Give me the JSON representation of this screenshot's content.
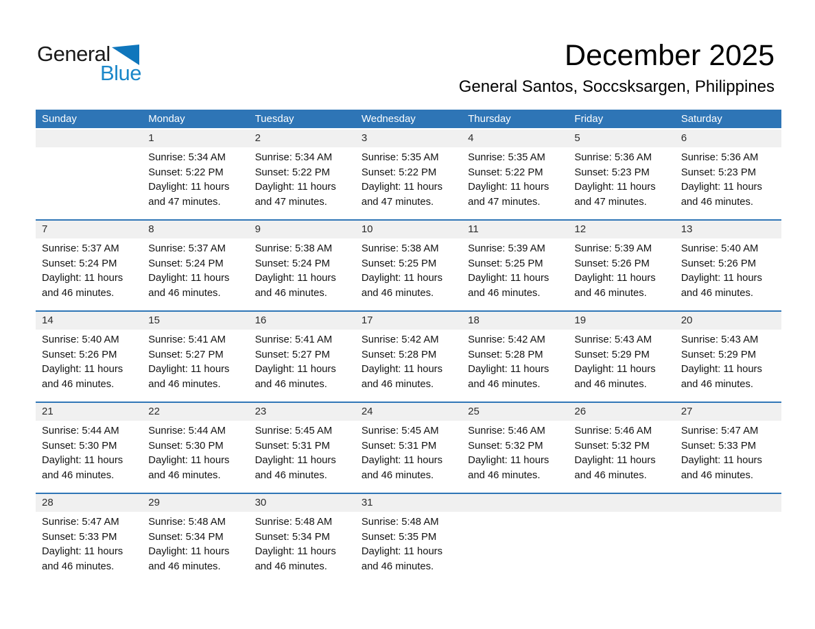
{
  "logo": {
    "general": "General",
    "blue": "Blue"
  },
  "header": {
    "title": "December 2025",
    "subtitle": "General Santos, Soccsksargen, Philippines"
  },
  "weekdays": [
    "Sunday",
    "Monday",
    "Tuesday",
    "Wednesday",
    "Thursday",
    "Friday",
    "Saturday"
  ],
  "weeks": [
    [
      {
        "day": "",
        "lines": []
      },
      {
        "day": "1",
        "lines": [
          "Sunrise: 5:34 AM",
          "Sunset: 5:22 PM",
          "Daylight: 11 hours",
          "and 47 minutes."
        ]
      },
      {
        "day": "2",
        "lines": [
          "Sunrise: 5:34 AM",
          "Sunset: 5:22 PM",
          "Daylight: 11 hours",
          "and 47 minutes."
        ]
      },
      {
        "day": "3",
        "lines": [
          "Sunrise: 5:35 AM",
          "Sunset: 5:22 PM",
          "Daylight: 11 hours",
          "and 47 minutes."
        ]
      },
      {
        "day": "4",
        "lines": [
          "Sunrise: 5:35 AM",
          "Sunset: 5:22 PM",
          "Daylight: 11 hours",
          "and 47 minutes."
        ]
      },
      {
        "day": "5",
        "lines": [
          "Sunrise: 5:36 AM",
          "Sunset: 5:23 PM",
          "Daylight: 11 hours",
          "and 47 minutes."
        ]
      },
      {
        "day": "6",
        "lines": [
          "Sunrise: 5:36 AM",
          "Sunset: 5:23 PM",
          "Daylight: 11 hours",
          "and 46 minutes."
        ]
      }
    ],
    [
      {
        "day": "7",
        "lines": [
          "Sunrise: 5:37 AM",
          "Sunset: 5:24 PM",
          "Daylight: 11 hours",
          "and 46 minutes."
        ]
      },
      {
        "day": "8",
        "lines": [
          "Sunrise: 5:37 AM",
          "Sunset: 5:24 PM",
          "Daylight: 11 hours",
          "and 46 minutes."
        ]
      },
      {
        "day": "9",
        "lines": [
          "Sunrise: 5:38 AM",
          "Sunset: 5:24 PM",
          "Daylight: 11 hours",
          "and 46 minutes."
        ]
      },
      {
        "day": "10",
        "lines": [
          "Sunrise: 5:38 AM",
          "Sunset: 5:25 PM",
          "Daylight: 11 hours",
          "and 46 minutes."
        ]
      },
      {
        "day": "11",
        "lines": [
          "Sunrise: 5:39 AM",
          "Sunset: 5:25 PM",
          "Daylight: 11 hours",
          "and 46 minutes."
        ]
      },
      {
        "day": "12",
        "lines": [
          "Sunrise: 5:39 AM",
          "Sunset: 5:26 PM",
          "Daylight: 11 hours",
          "and 46 minutes."
        ]
      },
      {
        "day": "13",
        "lines": [
          "Sunrise: 5:40 AM",
          "Sunset: 5:26 PM",
          "Daylight: 11 hours",
          "and 46 minutes."
        ]
      }
    ],
    [
      {
        "day": "14",
        "lines": [
          "Sunrise: 5:40 AM",
          "Sunset: 5:26 PM",
          "Daylight: 11 hours",
          "and 46 minutes."
        ]
      },
      {
        "day": "15",
        "lines": [
          "Sunrise: 5:41 AM",
          "Sunset: 5:27 PM",
          "Daylight: 11 hours",
          "and 46 minutes."
        ]
      },
      {
        "day": "16",
        "lines": [
          "Sunrise: 5:41 AM",
          "Sunset: 5:27 PM",
          "Daylight: 11 hours",
          "and 46 minutes."
        ]
      },
      {
        "day": "17",
        "lines": [
          "Sunrise: 5:42 AM",
          "Sunset: 5:28 PM",
          "Daylight: 11 hours",
          "and 46 minutes."
        ]
      },
      {
        "day": "18",
        "lines": [
          "Sunrise: 5:42 AM",
          "Sunset: 5:28 PM",
          "Daylight: 11 hours",
          "and 46 minutes."
        ]
      },
      {
        "day": "19",
        "lines": [
          "Sunrise: 5:43 AM",
          "Sunset: 5:29 PM",
          "Daylight: 11 hours",
          "and 46 minutes."
        ]
      },
      {
        "day": "20",
        "lines": [
          "Sunrise: 5:43 AM",
          "Sunset: 5:29 PM",
          "Daylight: 11 hours",
          "and 46 minutes."
        ]
      }
    ],
    [
      {
        "day": "21",
        "lines": [
          "Sunrise: 5:44 AM",
          "Sunset: 5:30 PM",
          "Daylight: 11 hours",
          "and 46 minutes."
        ]
      },
      {
        "day": "22",
        "lines": [
          "Sunrise: 5:44 AM",
          "Sunset: 5:30 PM",
          "Daylight: 11 hours",
          "and 46 minutes."
        ]
      },
      {
        "day": "23",
        "lines": [
          "Sunrise: 5:45 AM",
          "Sunset: 5:31 PM",
          "Daylight: 11 hours",
          "and 46 minutes."
        ]
      },
      {
        "day": "24",
        "lines": [
          "Sunrise: 5:45 AM",
          "Sunset: 5:31 PM",
          "Daylight: 11 hours",
          "and 46 minutes."
        ]
      },
      {
        "day": "25",
        "lines": [
          "Sunrise: 5:46 AM",
          "Sunset: 5:32 PM",
          "Daylight: 11 hours",
          "and 46 minutes."
        ]
      },
      {
        "day": "26",
        "lines": [
          "Sunrise: 5:46 AM",
          "Sunset: 5:32 PM",
          "Daylight: 11 hours",
          "and 46 minutes."
        ]
      },
      {
        "day": "27",
        "lines": [
          "Sunrise: 5:47 AM",
          "Sunset: 5:33 PM",
          "Daylight: 11 hours",
          "and 46 minutes."
        ]
      }
    ],
    [
      {
        "day": "28",
        "lines": [
          "Sunrise: 5:47 AM",
          "Sunset: 5:33 PM",
          "Daylight: 11 hours",
          "and 46 minutes."
        ]
      },
      {
        "day": "29",
        "lines": [
          "Sunrise: 5:48 AM",
          "Sunset: 5:34 PM",
          "Daylight: 11 hours",
          "and 46 minutes."
        ]
      },
      {
        "day": "30",
        "lines": [
          "Sunrise: 5:48 AM",
          "Sunset: 5:34 PM",
          "Daylight: 11 hours",
          "and 46 minutes."
        ]
      },
      {
        "day": "31",
        "lines": [
          "Sunrise: 5:48 AM",
          "Sunset: 5:35 PM",
          "Daylight: 11 hours",
          "and 46 minutes."
        ]
      },
      {
        "day": "",
        "lines": []
      },
      {
        "day": "",
        "lines": []
      },
      {
        "day": "",
        "lines": []
      }
    ]
  ],
  "colors": {
    "header_blue": "#2E75B6",
    "row_separator_blue": "#2E75B6",
    "day_strip_gray": "#F0F0F0",
    "logo_text_blue": "#1B87C9",
    "logo_triangle_blue": "#0F76BC",
    "weekday_text": "#FFFFFF"
  }
}
